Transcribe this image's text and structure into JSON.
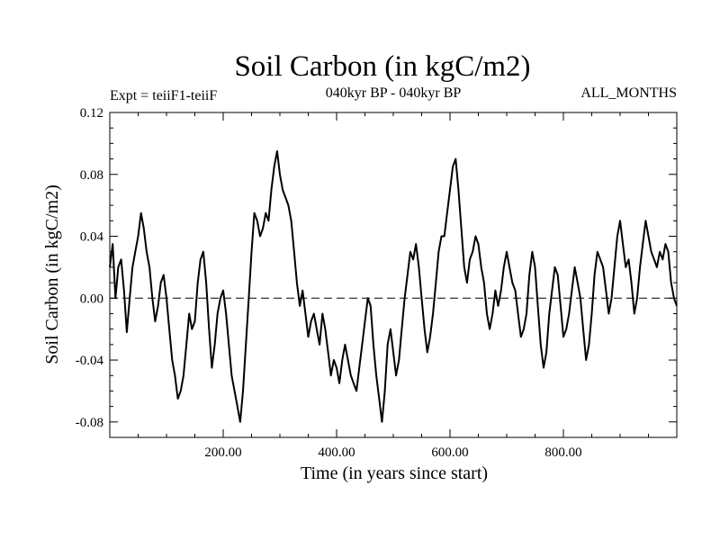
{
  "chart_data": {
    "type": "line",
    "title": "Soil Carbon (in kgC/m2)",
    "subtitle": "040kyr BP - 040kyr BP",
    "expt_label": "Expt = teiiF1-teiiF",
    "months_label": "ALL_MONTHS",
    "xlabel": "Time (in years since start)",
    "ylabel": "Soil Carbon (in kgC/m2)",
    "xlim": [
      0,
      1000
    ],
    "ylim": [
      -0.09,
      0.12
    ],
    "xticks": [
      200,
      400,
      600,
      800
    ],
    "xtick_labels": [
      "200.00",
      "400.00",
      "600.00",
      "800.00"
    ],
    "yticks": [
      0.12,
      0.08,
      0.04,
      0.0,
      -0.04,
      -0.08
    ],
    "ytick_labels": [
      "0.12",
      "0.08",
      "0.04",
      "0.00",
      "-0.04",
      "-0.08"
    ],
    "reference_line": {
      "y": 0.0,
      "style": "dashed"
    },
    "series": [
      {
        "color": "#000000",
        "x": [
          0,
          5,
          10,
          15,
          20,
          25,
          30,
          35,
          40,
          45,
          50,
          55,
          60,
          65,
          70,
          75,
          80,
          85,
          90,
          95,
          100,
          105,
          110,
          115,
          120,
          125,
          130,
          135,
          140,
          145,
          150,
          155,
          160,
          165,
          170,
          175,
          180,
          185,
          190,
          195,
          200,
          205,
          210,
          215,
          220,
          225,
          230,
          235,
          240,
          245,
          250,
          255,
          260,
          265,
          270,
          275,
          280,
          285,
          290,
          295,
          300,
          305,
          310,
          315,
          320,
          325,
          330,
          335,
          340,
          345,
          350,
          355,
          360,
          365,
          370,
          375,
          380,
          385,
          390,
          395,
          400,
          405,
          410,
          415,
          420,
          425,
          430,
          435,
          440,
          445,
          450,
          455,
          460,
          465,
          470,
          475,
          480,
          485,
          490,
          495,
          500,
          505,
          510,
          515,
          520,
          525,
          530,
          535,
          540,
          545,
          550,
          555,
          560,
          565,
          570,
          575,
          580,
          585,
          590,
          595,
          600,
          605,
          610,
          615,
          620,
          625,
          630,
          635,
          640,
          645,
          650,
          655,
          660,
          665,
          670,
          675,
          680,
          685,
          690,
          695,
          700,
          705,
          710,
          715,
          720,
          725,
          730,
          735,
          740,
          745,
          750,
          755,
          760,
          765,
          770,
          775,
          780,
          785,
          790,
          795,
          800,
          805,
          810,
          815,
          820,
          825,
          830,
          835,
          840,
          845,
          850,
          855,
          860,
          865,
          870,
          875,
          880,
          885,
          890,
          895,
          900,
          905,
          910,
          915,
          920,
          925,
          930,
          935,
          940,
          945,
          950,
          955,
          960,
          965,
          970,
          975,
          980,
          985,
          990,
          995,
          1000
        ],
        "values": [
          0.02,
          0.035,
          0.0,
          0.02,
          0.025,
          0.005,
          -0.022,
          0.0,
          0.02,
          0.03,
          0.04,
          0.055,
          0.045,
          0.03,
          0.02,
          0.0,
          -0.015,
          -0.005,
          0.01,
          0.015,
          0.0,
          -0.02,
          -0.04,
          -0.05,
          -0.065,
          -0.06,
          -0.05,
          -0.03,
          -0.01,
          -0.02,
          -0.015,
          0.01,
          0.025,
          0.03,
          0.01,
          -0.02,
          -0.045,
          -0.03,
          -0.01,
          0.0,
          0.005,
          -0.01,
          -0.03,
          -0.05,
          -0.06,
          -0.07,
          -0.08,
          -0.06,
          -0.03,
          0.0,
          0.03,
          0.055,
          0.05,
          0.04,
          0.045,
          0.055,
          0.05,
          0.07,
          0.085,
          0.095,
          0.08,
          0.07,
          0.065,
          0.06,
          0.05,
          0.03,
          0.01,
          -0.005,
          0.005,
          -0.01,
          -0.025,
          -0.015,
          -0.01,
          -0.02,
          -0.03,
          -0.01,
          -0.02,
          -0.035,
          -0.05,
          -0.04,
          -0.045,
          -0.055,
          -0.04,
          -0.03,
          -0.04,
          -0.05,
          -0.055,
          -0.06,
          -0.045,
          -0.03,
          -0.015,
          0.0,
          -0.005,
          -0.03,
          -0.05,
          -0.065,
          -0.08,
          -0.06,
          -0.03,
          -0.02,
          -0.035,
          -0.05,
          -0.04,
          -0.02,
          0.0,
          0.015,
          0.03,
          0.025,
          0.035,
          0.02,
          0.0,
          -0.02,
          -0.035,
          -0.025,
          -0.01,
          0.01,
          0.03,
          0.04,
          0.04,
          0.055,
          0.07,
          0.085,
          0.09,
          0.07,
          0.045,
          0.02,
          0.01,
          0.025,
          0.03,
          0.04,
          0.035,
          0.02,
          0.01,
          -0.01,
          -0.02,
          -0.01,
          0.005,
          -0.005,
          0.005,
          0.02,
          0.03,
          0.02,
          0.01,
          0.005,
          -0.01,
          -0.025,
          -0.02,
          -0.01,
          0.015,
          0.03,
          0.02,
          -0.005,
          -0.03,
          -0.045,
          -0.035,
          -0.01,
          0.005,
          0.02,
          0.015,
          -0.005,
          -0.025,
          -0.02,
          -0.01,
          0.005,
          0.02,
          0.01,
          0.0,
          -0.02,
          -0.04,
          -0.03,
          -0.01,
          0.015,
          0.03,
          0.025,
          0.02,
          0.005,
          -0.01,
          0.0,
          0.02,
          0.04,
          0.05,
          0.035,
          0.02,
          0.025,
          0.01,
          -0.01,
          0.0,
          0.02,
          0.035,
          0.05,
          0.04,
          0.03,
          0.025,
          0.02,
          0.03,
          0.025,
          0.035,
          0.03,
          0.01,
          0.0,
          -0.005
        ]
      }
    ]
  }
}
